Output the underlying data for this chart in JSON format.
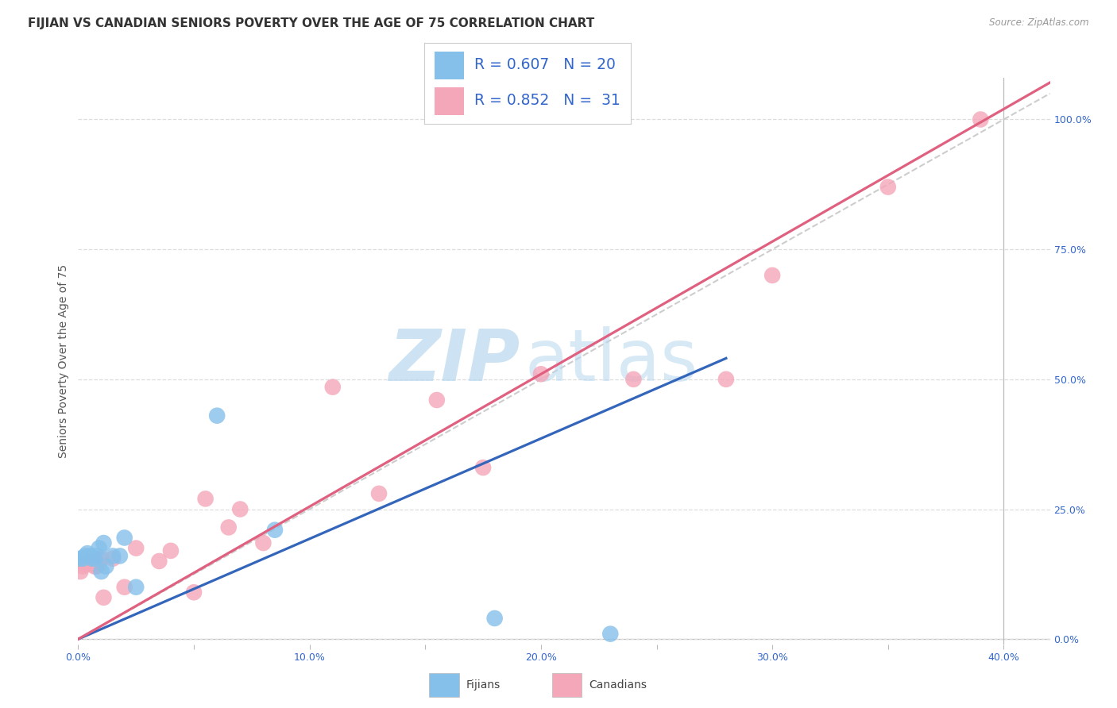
{
  "title": "FIJIAN VS CANADIAN SENIORS POVERTY OVER THE AGE OF 75 CORRELATION CHART",
  "source": "Source: ZipAtlas.com",
  "ylabel": "Seniors Poverty Over the Age of 75",
  "xlim": [
    0.0,
    0.42
  ],
  "ylim": [
    -0.01,
    1.08
  ],
  "xticks": [
    0.0,
    0.05,
    0.1,
    0.15,
    0.2,
    0.25,
    0.3,
    0.35,
    0.4
  ],
  "xtick_labels": [
    "0.0%",
    "",
    "10.0%",
    "",
    "20.0%",
    "",
    "30.0%",
    "",
    "40.0%"
  ],
  "ytick_values": [
    0.0,
    0.25,
    0.5,
    0.75,
    1.0
  ],
  "ytick_labels": [
    "0.0%",
    "25.0%",
    "50.0%",
    "75.0%",
    "100.0%"
  ],
  "fijians_color": "#85C0EA",
  "canadians_color": "#F4A7B9",
  "fijians_line_color": "#3366BB",
  "canadians_line_color": "#E06080",
  "ref_line_color": "#C8C8C8",
  "bg_color": "#FFFFFF",
  "grid_color": "#DDDDDD",
  "blue_text": "#3366CC",
  "legend_fijians_R": "R = 0.607",
  "legend_fijians_N": "N = 20",
  "legend_canadians_R": "R = 0.852",
  "legend_canadians_N": "N = 31",
  "fijians_x": [
    0.001,
    0.002,
    0.003,
    0.004,
    0.005,
    0.006,
    0.007,
    0.008,
    0.009,
    0.01,
    0.011,
    0.012,
    0.015,
    0.018,
    0.02,
    0.025,
    0.06,
    0.085,
    0.18,
    0.23
  ],
  "fijians_y": [
    0.155,
    0.155,
    0.16,
    0.165,
    0.16,
    0.155,
    0.155,
    0.16,
    0.175,
    0.13,
    0.185,
    0.14,
    0.16,
    0.16,
    0.195,
    0.1,
    0.43,
    0.21,
    0.04,
    0.01
  ],
  "canadians_x": [
    0.001,
    0.002,
    0.003,
    0.004,
    0.005,
    0.006,
    0.007,
    0.008,
    0.009,
    0.01,
    0.011,
    0.015,
    0.02,
    0.025,
    0.035,
    0.04,
    0.05,
    0.055,
    0.065,
    0.07,
    0.08,
    0.11,
    0.13,
    0.155,
    0.175,
    0.2,
    0.24,
    0.28,
    0.3,
    0.35,
    0.39
  ],
  "canadians_y": [
    0.13,
    0.14,
    0.145,
    0.145,
    0.15,
    0.145,
    0.14,
    0.14,
    0.145,
    0.155,
    0.08,
    0.155,
    0.1,
    0.175,
    0.15,
    0.17,
    0.09,
    0.27,
    0.215,
    0.25,
    0.185,
    0.485,
    0.28,
    0.46,
    0.33,
    0.51,
    0.5,
    0.5,
    0.7,
    0.87,
    1.0
  ]
}
